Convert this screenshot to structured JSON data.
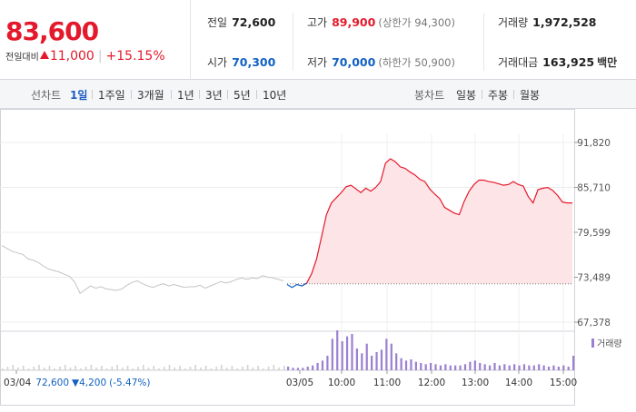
{
  "quote": {
    "current_price": "83,600",
    "change_label": "전일대비",
    "change_amount": "11,000",
    "change_pct": "+15.15%",
    "stats": {
      "prev_close_label": "전일",
      "prev_close": "72,600",
      "high_label": "고가",
      "high": "89,900",
      "upper_limit": "(상한가 94,300)",
      "volume_label": "거래량",
      "volume": "1,972,528",
      "open_label": "시가",
      "open": "70,300",
      "low_label": "저가",
      "low": "70,000",
      "lower_limit": "(하한가 50,900)",
      "trade_value_label": "거래대금",
      "trade_value": "163,925",
      "trade_value_unit": "백만"
    },
    "colors": {
      "up": "#e4192b",
      "down": "#1261c4"
    }
  },
  "periods": {
    "line_label": "선차트",
    "line_items": [
      "1일",
      "1주일",
      "3개월",
      "1년",
      "3년",
      "5년",
      "10년"
    ],
    "active": "1일",
    "candle_label": "봉차트",
    "candle_items": [
      "일봉",
      "주봉",
      "월봉"
    ]
  },
  "chart_data": {
    "type": "line",
    "y_ticks": [
      "91,820",
      "85,710",
      "79,599",
      "73,489",
      "67,378"
    ],
    "ylim": [
      67378,
      91820
    ],
    "baseline": 72600,
    "x_labels": [
      "03/04",
      "03/05",
      "10:00",
      "11:00",
      "12:00",
      "13:00",
      "14:00",
      "15:00"
    ],
    "prev_day_note": {
      "date": "03/04",
      "price": "72,600",
      "change": "4,200",
      "pct": "(-5.47%)"
    },
    "volume_legend": "거래량",
    "prev_day_prices": [
      77800,
      77400,
      77000,
      76800,
      76600,
      76000,
      75800,
      75500,
      75000,
      74600,
      74400,
      74200,
      73900,
      73600,
      72800,
      71300,
      71800,
      72300,
      72000,
      72200,
      71900,
      71800,
      71700,
      71900,
      72400,
      72800,
      73000,
      72600,
      72300,
      72100,
      72400,
      72600,
      72300,
      72500,
      72300,
      72100,
      72200,
      72200,
      72400,
      72000,
      72300,
      72600,
      72900,
      72700,
      72900,
      73200,
      73400,
      73200,
      73400,
      73300,
      73700,
      73500,
      73400,
      73200,
      73000
    ],
    "today_prices": [
      72500,
      72100,
      72500,
      72300,
      72700,
      74000,
      76000,
      79000,
      82000,
      83600,
      84300,
      85000,
      85800,
      86000,
      85500,
      85000,
      85600,
      85200,
      85700,
      86500,
      89000,
      89600,
      89200,
      88500,
      88300,
      87800,
      87400,
      86800,
      86500,
      85500,
      84800,
      84200,
      83000,
      82600,
      82200,
      82000,
      83800,
      85200,
      86100,
      86700,
      86700,
      86500,
      86400,
      86200,
      86000,
      86100,
      86500,
      86100,
      85900,
      84500,
      83600,
      85400,
      85600,
      85700,
      85300,
      84600,
      83700,
      83600,
      83600
    ],
    "today_volume": [
      3,
      2,
      2,
      2,
      3,
      4,
      6,
      8,
      12,
      26,
      33,
      24,
      28,
      30,
      18,
      14,
      22,
      12,
      15,
      17,
      26,
      22,
      14,
      10,
      8,
      9,
      7,
      6,
      5,
      6,
      5,
      4,
      5,
      4,
      4,
      4,
      5,
      7,
      8,
      6,
      5,
      4,
      6,
      4,
      5,
      4,
      5,
      4,
      5,
      4,
      4,
      5,
      4,
      3,
      4,
      3,
      4,
      3,
      12
    ]
  }
}
